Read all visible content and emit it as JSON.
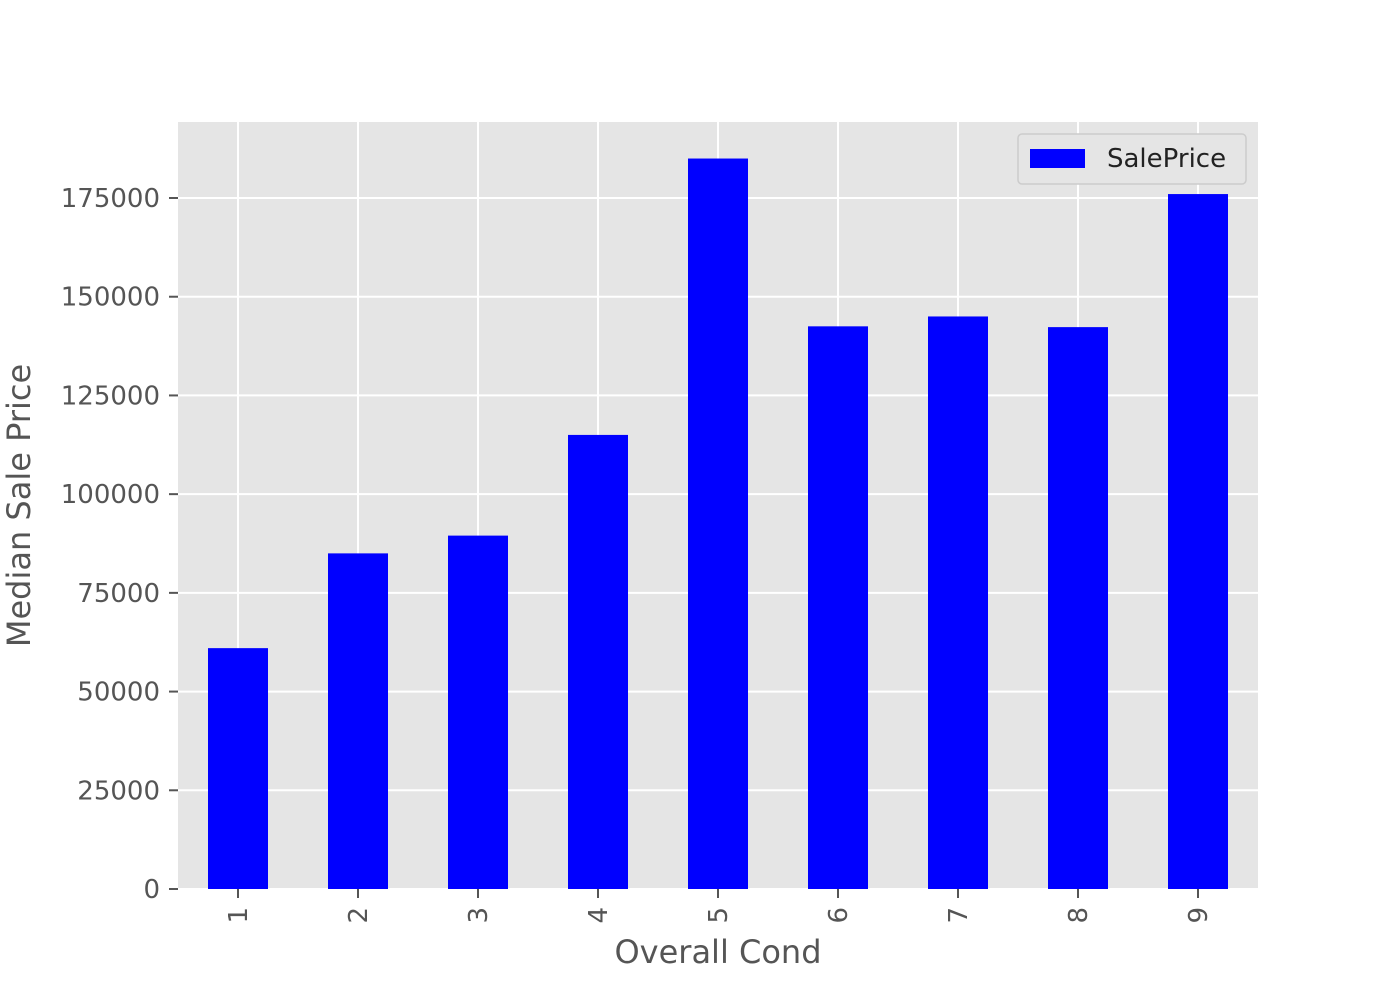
{
  "chart_data": {
    "type": "bar",
    "categories": [
      "1",
      "2",
      "3",
      "4",
      "5",
      "6",
      "7",
      "8",
      "9"
    ],
    "series": [
      {
        "name": "SalePrice",
        "color": "#0000ff",
        "values": [
          61000,
          85000,
          89500,
          115000,
          185000,
          142500,
          145000,
          142300,
          176000
        ]
      }
    ],
    "xlabel": "Overall Cond",
    "ylabel": "Median Sale Price",
    "ylim": [
      0,
      194250
    ],
    "yticks": [
      0,
      25000,
      50000,
      75000,
      100000,
      125000,
      150000,
      175000
    ],
    "ytick_labels": [
      "0",
      "25000",
      "50000",
      "75000",
      "100000",
      "125000",
      "150000",
      "175000"
    ],
    "xtick_rotation": "vertical",
    "grid": true,
    "legend_position": "top-right",
    "style": {
      "plot_background": "#e5e5e5",
      "grid_color": "#ffffff",
      "tick_color": "#555555"
    }
  }
}
